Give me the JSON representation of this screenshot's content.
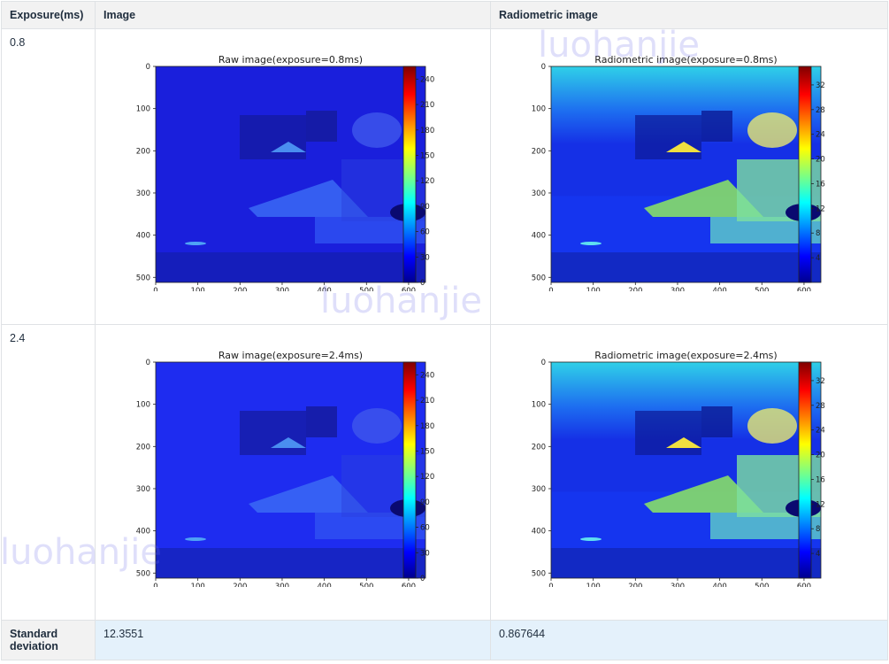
{
  "table": {
    "headers": [
      "Exposure(ms)",
      "Image",
      "Radiometric image"
    ],
    "rows": [
      {
        "exposure": "0.8",
        "raw_title": "Raw image(exposure=0.8ms)",
        "rad_title": "Radiometric image(exposure=0.8ms)"
      },
      {
        "exposure": "2.4",
        "raw_title": "Raw image(exposure=2.4ms)",
        "rad_title": "Radiometric image(exposure=2.4ms)"
      }
    ],
    "std_label": "Standard deviation",
    "std_image": "12.3551",
    "std_radiometric": "0.867644"
  },
  "watermark": "luohanjie",
  "chart_data": [
    {
      "type": "heatmap",
      "title": "Raw image(exposure=0.8ms)",
      "x_ticks": [
        "0",
        "100",
        "200",
        "300",
        "400",
        "500",
        "600"
      ],
      "y_ticks": [
        "0",
        "100",
        "200",
        "300",
        "400",
        "500"
      ],
      "colorbar_ticks": [
        "0",
        "30",
        "60",
        "90",
        "120",
        "150",
        "180",
        "210",
        "240"
      ],
      "colormap": "jet"
    },
    {
      "type": "heatmap",
      "title": "Radiometric image(exposure=0.8ms)",
      "x_ticks": [
        "0",
        "100",
        "200",
        "300",
        "400",
        "500",
        "600"
      ],
      "y_ticks": [
        "0",
        "100",
        "200",
        "300",
        "400",
        "500"
      ],
      "colorbar_ticks": [
        "4",
        "8",
        "12",
        "16",
        "20",
        "24",
        "28",
        "32"
      ],
      "colormap": "jet"
    },
    {
      "type": "heatmap",
      "title": "Raw image(exposure=2.4ms)",
      "x_ticks": [
        "0",
        "100",
        "200",
        "300",
        "400",
        "500",
        "600"
      ],
      "y_ticks": [
        "0",
        "100",
        "200",
        "300",
        "400",
        "500"
      ],
      "colorbar_ticks": [
        "0",
        "30",
        "60",
        "90",
        "120",
        "150",
        "180",
        "210",
        "240"
      ],
      "colormap": "jet"
    },
    {
      "type": "heatmap",
      "title": "Radiometric image(exposure=2.4ms)",
      "x_ticks": [
        "0",
        "100",
        "200",
        "300",
        "400",
        "500",
        "600"
      ],
      "y_ticks": [
        "0",
        "100",
        "200",
        "300",
        "400",
        "500"
      ],
      "colorbar_ticks": [
        "4",
        "8",
        "12",
        "16",
        "20",
        "24",
        "28",
        "32"
      ],
      "colormap": "jet"
    }
  ]
}
